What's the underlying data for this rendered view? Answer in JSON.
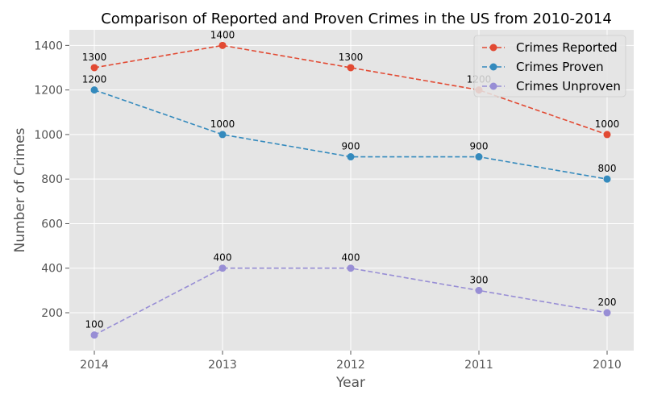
{
  "chart_data": {
    "type": "line",
    "title": "Comparison of Reported and Proven Crimes in the US from 2010-2014",
    "xlabel": "Year",
    "ylabel": "Number of Crimes",
    "categories": [
      "2014",
      "2013",
      "2012",
      "2011",
      "2010"
    ],
    "yticks": [
      200,
      400,
      600,
      800,
      1000,
      1200,
      1400
    ],
    "ylim": [
      30,
      1470
    ],
    "grid": true,
    "legend_position": "top-right",
    "series": [
      {
        "name": "Crimes Reported",
        "values": [
          1300,
          1400,
          1300,
          1200,
          1000
        ],
        "color": "#E24A33"
      },
      {
        "name": "Crimes Proven",
        "values": [
          1200,
          1000,
          900,
          900,
          800
        ],
        "color": "#348ABD"
      },
      {
        "name": "Crimes Unproven",
        "values": [
          100,
          400,
          400,
          300,
          200
        ],
        "color": "#988ED5"
      }
    ]
  }
}
